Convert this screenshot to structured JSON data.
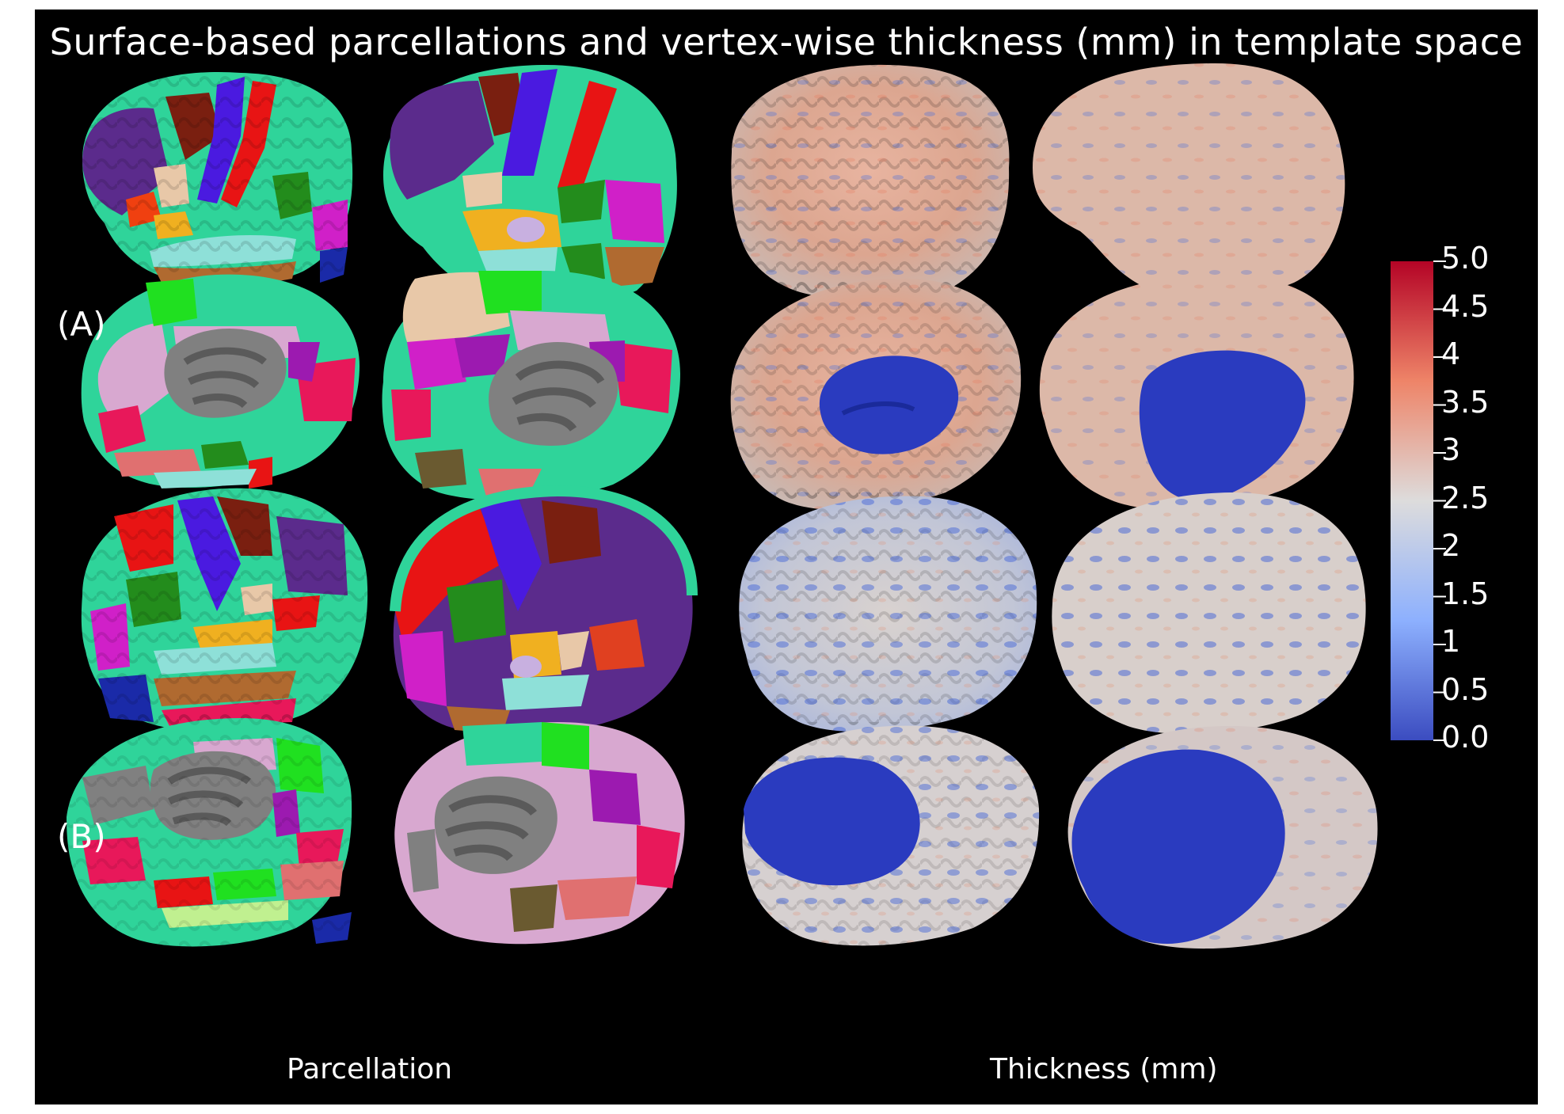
{
  "figure": {
    "title": "Surface-based parcellations and vertex-wise thickness (mm) in template space",
    "row_labels": [
      "(A)",
      "(B)"
    ],
    "column_labels": [
      "Parcellation",
      "Thickness (mm)"
    ]
  },
  "colorbar": {
    "ticks": [
      "5.0",
      "4.5",
      "4",
      "3.5",
      "3",
      "2.5",
      "2",
      "1.5",
      "1",
      "0.5",
      "0.0"
    ],
    "min": 0.0,
    "max": 5.0,
    "colors": {
      "low": "#3b4cc0",
      "mid": "#dddcdc",
      "high": "#b40426"
    }
  },
  "colors": {
    "background": "#000000",
    "parcellation": [
      "#2fd49a",
      "#5b2b8c",
      "#7a1f10",
      "#4a1ae0",
      "#e81414",
      "#238c1c",
      "#e8c8a8",
      "#f0b020",
      "#8ee0d8",
      "#b06a30",
      "#d020c8",
      "#1a2aa8",
      "#d8a8d0",
      "#9c1ab0",
      "#e8185a",
      "#e07070",
      "#808080",
      "#20e020"
    ],
    "medial_wall": "#2a3bbf"
  }
}
